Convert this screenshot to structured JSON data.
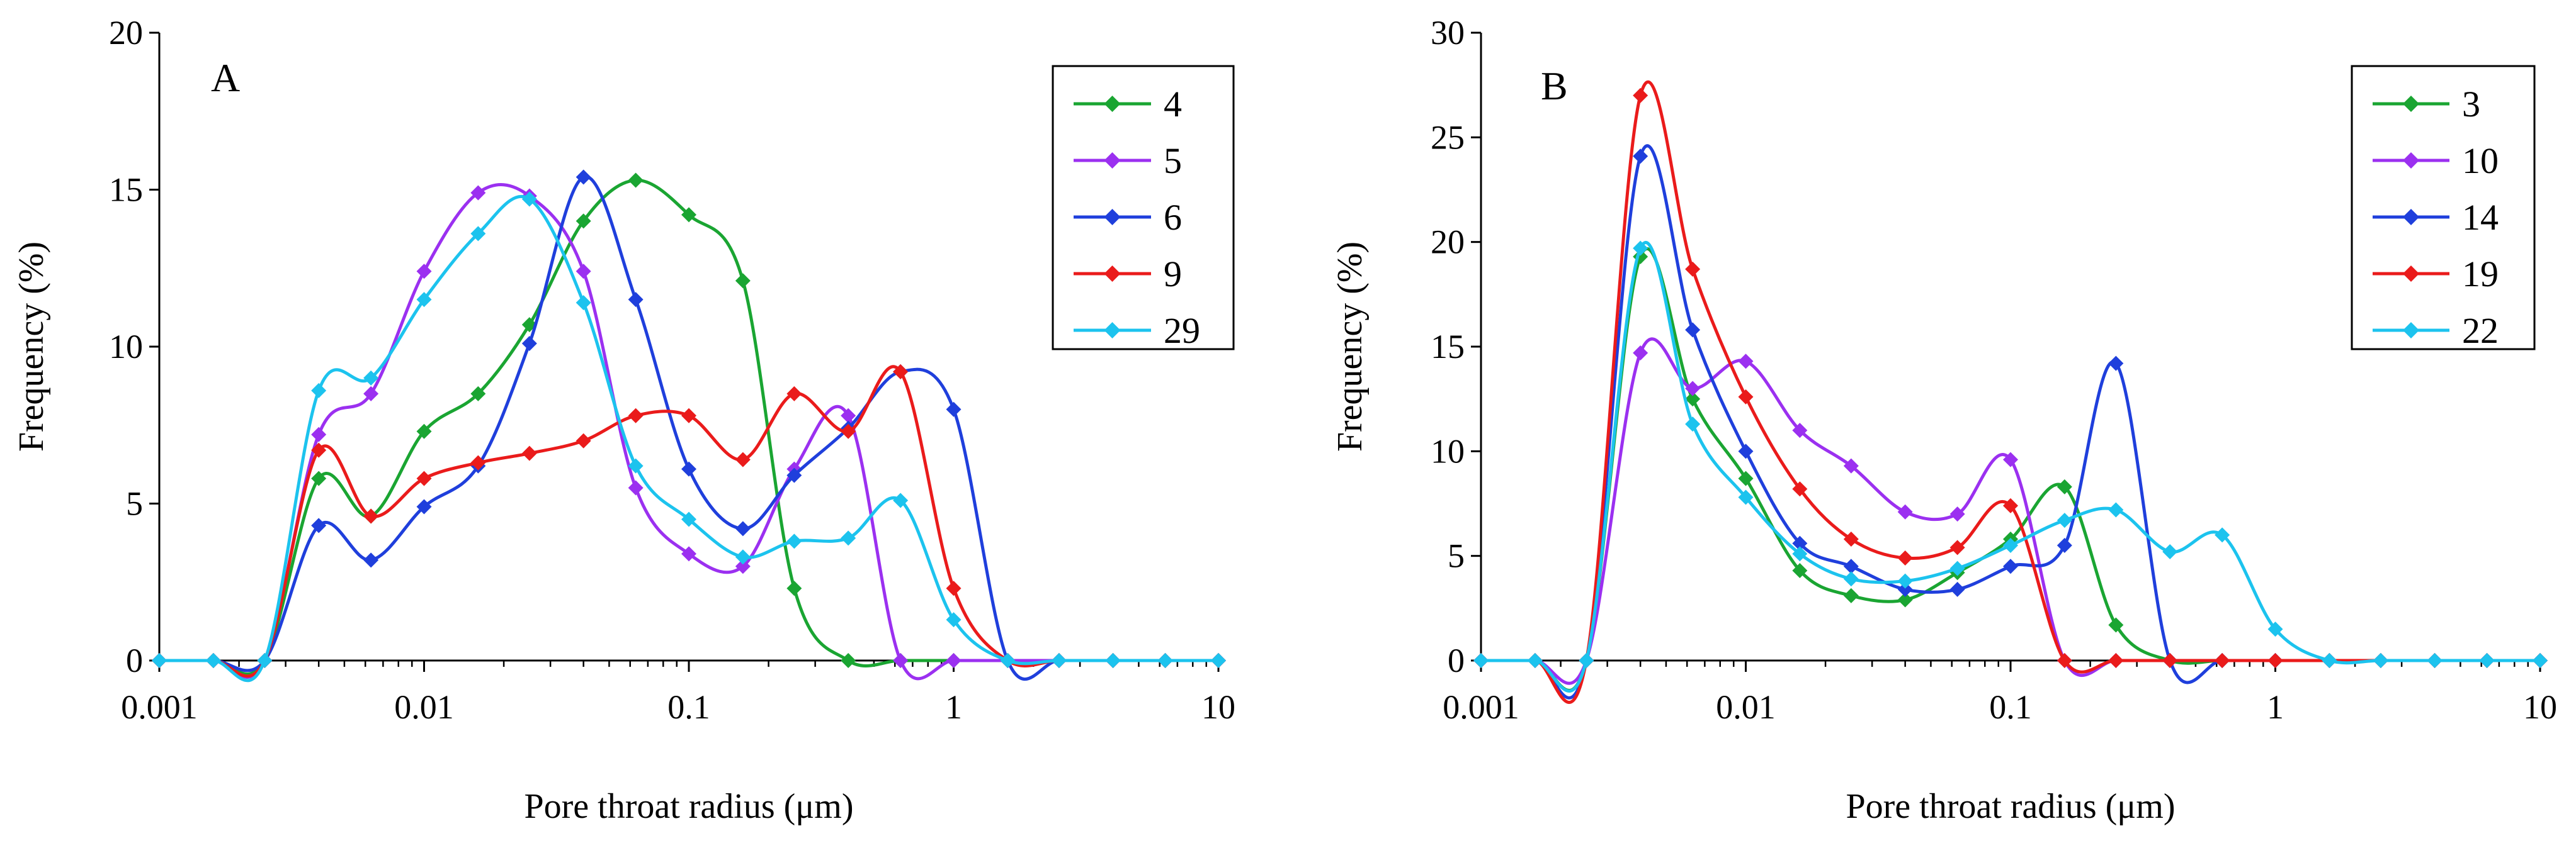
{
  "colors": {
    "green": "#1aa532",
    "purple": "#9b30f0",
    "blue": "#1f3fdc",
    "red": "#ea1b1b",
    "cyan": "#1cc3ee"
  },
  "chart_data": [
    {
      "type": "line",
      "panel_label": "A",
      "xlabel": "Pore throat radius (μm)",
      "ylabel": "Frequency (%)",
      "x_scale": "log",
      "xlim": [
        0.001,
        10
      ],
      "ylim": [
        0,
        20
      ],
      "xticks": [
        0.001,
        0.01,
        0.1,
        1,
        10
      ],
      "xtick_labels": [
        "0.001",
        "0.01",
        "0.1",
        "1",
        "10"
      ],
      "yticks": [
        0,
        5,
        10,
        15,
        20
      ],
      "ytick_labels": [
        "0",
        "5",
        "10",
        "15",
        "20"
      ],
      "legend_position": "top-right",
      "x": [
        0.001,
        0.0016,
        0.0025,
        0.004,
        0.0063,
        0.01,
        0.016,
        0.025,
        0.04,
        0.063,
        0.1,
        0.16,
        0.25,
        0.4,
        0.63,
        1,
        1.6,
        2.5,
        4,
        6.3,
        10
      ],
      "series": [
        {
          "name": "4",
          "color": "green",
          "values": [
            0,
            0,
            0,
            5.8,
            4.6,
            7.3,
            8.5,
            10.7,
            14.0,
            15.3,
            14.2,
            12.1,
            2.3,
            0,
            0,
            0,
            0,
            0,
            0,
            0,
            0
          ]
        },
        {
          "name": "5",
          "color": "purple",
          "values": [
            0,
            0,
            0,
            7.2,
            8.5,
            12.4,
            14.9,
            14.8,
            12.4,
            5.5,
            3.4,
            3.0,
            6.1,
            7.8,
            0,
            0,
            0,
            0,
            0,
            0,
            0
          ]
        },
        {
          "name": "6",
          "color": "blue",
          "values": [
            0,
            0,
            0,
            4.3,
            3.2,
            4.9,
            6.2,
            10.1,
            15.4,
            11.5,
            6.1,
            4.2,
            5.9,
            7.4,
            9.2,
            8.0,
            0,
            0,
            0,
            0,
            0
          ]
        },
        {
          "name": "9",
          "color": "red",
          "values": [
            0,
            0,
            0,
            6.7,
            4.6,
            5.8,
            6.3,
            6.6,
            7.0,
            7.8,
            7.8,
            6.4,
            8.5,
            7.3,
            9.2,
            2.3,
            0,
            0,
            0,
            0,
            0
          ]
        },
        {
          "name": "29",
          "color": "cyan",
          "values": [
            0,
            0,
            0,
            8.6,
            9.0,
            11.5,
            13.6,
            14.7,
            11.4,
            6.2,
            4.5,
            3.3,
            3.8,
            3.9,
            5.1,
            1.3,
            0,
            0,
            0,
            0,
            0
          ]
        }
      ]
    },
    {
      "type": "line",
      "panel_label": "B",
      "xlabel": "Pore throat radius (μm)",
      "ylabel": "Frequency (%)",
      "x_scale": "log",
      "xlim": [
        0.001,
        10
      ],
      "ylim": [
        0,
        30
      ],
      "xticks": [
        0.001,
        0.01,
        0.1,
        1,
        10
      ],
      "xtick_labels": [
        "0.001",
        "0.01",
        "0.1",
        "1",
        "10"
      ],
      "yticks": [
        0,
        5,
        10,
        15,
        20,
        25,
        30
      ],
      "ytick_labels": [
        "0",
        "5",
        "10",
        "15",
        "20",
        "25",
        "30"
      ],
      "legend_position": "top-right",
      "x": [
        0.001,
        0.0016,
        0.0025,
        0.004,
        0.0063,
        0.01,
        0.016,
        0.025,
        0.04,
        0.063,
        0.1,
        0.16,
        0.25,
        0.4,
        0.63,
        1,
        1.6,
        2.5,
        4,
        6.3,
        10
      ],
      "series": [
        {
          "name": "3",
          "color": "green",
          "values": [
            0,
            0,
            0,
            19.3,
            12.5,
            8.7,
            4.3,
            3.1,
            2.9,
            4.2,
            5.8,
            8.3,
            1.7,
            0,
            0,
            0,
            0,
            0,
            0,
            0,
            0
          ]
        },
        {
          "name": "10",
          "color": "purple",
          "values": [
            0,
            0,
            0,
            14.7,
            13.0,
            14.3,
            11.0,
            9.3,
            7.1,
            7.0,
            9.6,
            0,
            0,
            0,
            0,
            0,
            0,
            0,
            0,
            0,
            0
          ]
        },
        {
          "name": "14",
          "color": "blue",
          "values": [
            0,
            0,
            0,
            24.1,
            15.8,
            10.0,
            5.6,
            4.5,
            3.4,
            3.4,
            4.5,
            5.5,
            14.2,
            0,
            0,
            0,
            0,
            0,
            0,
            0,
            0
          ]
        },
        {
          "name": "19",
          "color": "red",
          "values": [
            0,
            0,
            0,
            27.0,
            18.7,
            12.6,
            8.2,
            5.8,
            4.9,
            5.4,
            7.4,
            0,
            0,
            0,
            0,
            0,
            0,
            0,
            0,
            0,
            0
          ]
        },
        {
          "name": "22",
          "color": "cyan",
          "values": [
            0,
            0,
            0,
            19.7,
            11.3,
            7.8,
            5.1,
            3.9,
            3.8,
            4.4,
            5.5,
            6.7,
            7.2,
            5.2,
            6.0,
            1.5,
            0,
            0,
            0,
            0,
            0
          ]
        }
      ]
    }
  ]
}
